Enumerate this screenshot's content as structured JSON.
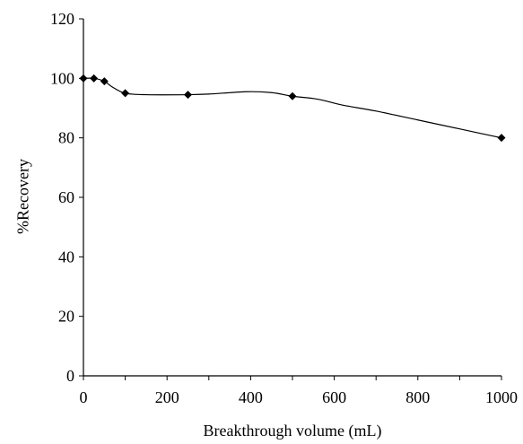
{
  "chart_data": {
    "type": "line",
    "title": "",
    "xlabel": "Breakthrough volume (mL)",
    "ylabel": "%Recovery",
    "xlim": [
      0,
      1000
    ],
    "ylim": [
      0,
      120
    ],
    "x_ticks": [
      0,
      200,
      400,
      600,
      800,
      1000
    ],
    "y_ticks": [
      0,
      20,
      40,
      60,
      80,
      100,
      120
    ],
    "grid": false,
    "series": [
      {
        "marker": "diamond",
        "color": "#000000",
        "points": [
          {
            "x": 0,
            "y": 100
          },
          {
            "x": 25,
            "y": 100
          },
          {
            "x": 50,
            "y": 99
          },
          {
            "x": 100,
            "y": 95
          },
          {
            "x": 250,
            "y": 94.5
          },
          {
            "x": 500,
            "y": 94
          },
          {
            "x": 1000,
            "y": 80
          }
        ]
      }
    ],
    "curve": [
      {
        "x": 0,
        "y": 100
      },
      {
        "x": 25,
        "y": 100
      },
      {
        "x": 50,
        "y": 99
      },
      {
        "x": 70,
        "y": 97
      },
      {
        "x": 100,
        "y": 95
      },
      {
        "x": 150,
        "y": 94.5
      },
      {
        "x": 250,
        "y": 94.5
      },
      {
        "x": 300,
        "y": 94.7
      },
      {
        "x": 390,
        "y": 95.5
      },
      {
        "x": 450,
        "y": 95.2
      },
      {
        "x": 500,
        "y": 94
      },
      {
        "x": 560,
        "y": 93
      },
      {
        "x": 620,
        "y": 91
      },
      {
        "x": 700,
        "y": 89
      },
      {
        "x": 800,
        "y": 86
      },
      {
        "x": 900,
        "y": 83
      },
      {
        "x": 1000,
        "y": 80
      }
    ]
  }
}
